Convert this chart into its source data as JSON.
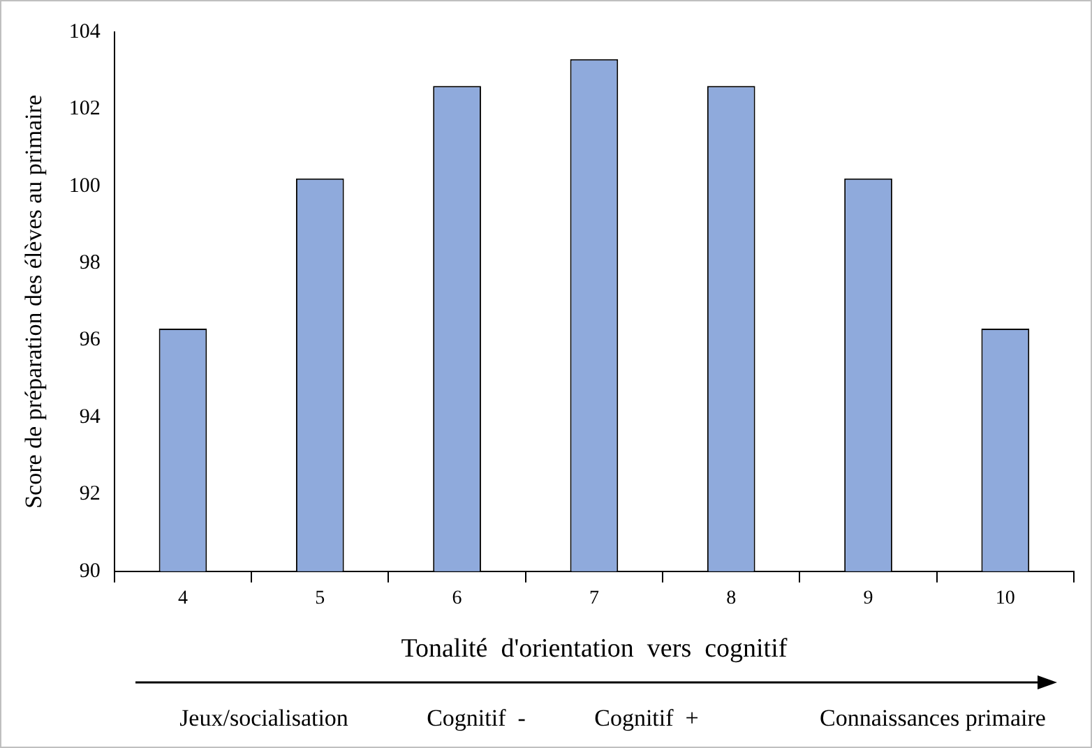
{
  "chart_data": {
    "type": "bar",
    "xlabel": "Tonalité  d'orientation  vers  cognitif",
    "ylabel": "Score de préparation des élèves au primaire",
    "categories": [
      "4",
      "5",
      "6",
      "7",
      "8",
      "9",
      "10"
    ],
    "values": [
      96.3,
      100.2,
      102.6,
      103.3,
      102.6,
      100.2,
      96.3
    ],
    "color": "#8faadc",
    "ylim": [
      90,
      104
    ],
    "yticks": [
      90,
      92,
      94,
      96,
      98,
      100,
      102,
      104
    ],
    "grid": false,
    "legend": false,
    "annotations": [
      "Jeux/socialisation",
      "Cognitif  -",
      "Cognitif  +",
      "Connaissances primaire"
    ]
  }
}
